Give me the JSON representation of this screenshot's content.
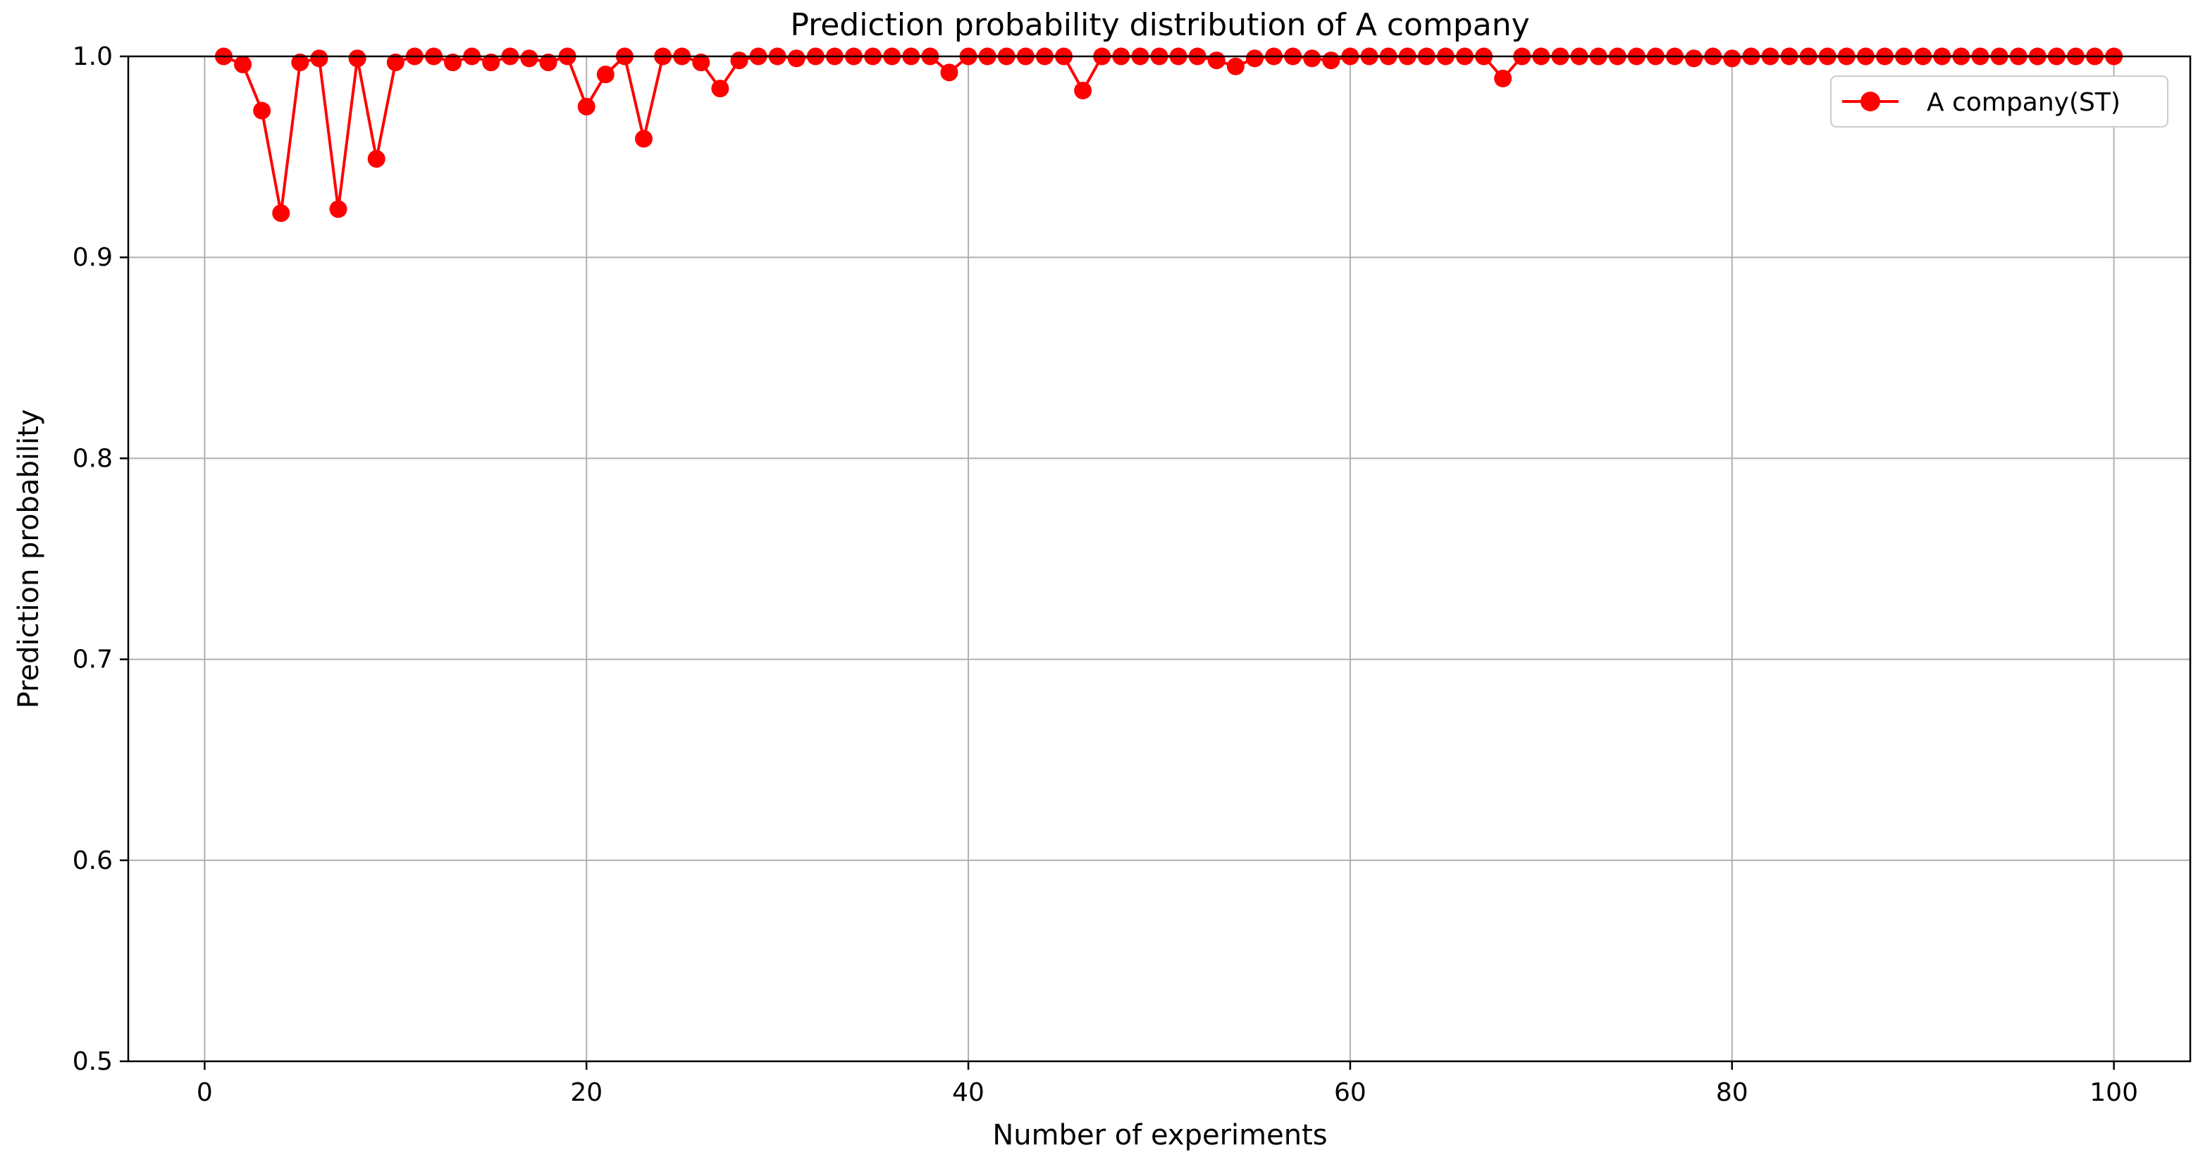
{
  "chart_data": {
    "type": "line",
    "title": "Prediction probability distribution of A company",
    "xlabel": "Number of experiments",
    "ylabel": "Prediction probability",
    "xlim": [
      -4,
      104
    ],
    "ylim": [
      0.5,
      1.0
    ],
    "xticks": [
      0,
      20,
      40,
      60,
      80,
      100
    ],
    "xtick_labels": [
      "0",
      "20",
      "40",
      "60",
      "80",
      "100"
    ],
    "yticks": [
      0.5,
      0.6,
      0.7,
      0.8,
      0.9,
      1.0
    ],
    "ytick_labels": [
      "0.5",
      "0.6",
      "0.7",
      "0.8",
      "0.9",
      "1.0"
    ],
    "grid": true,
    "legend_position": "top-right",
    "x": [
      1,
      2,
      3,
      4,
      5,
      6,
      7,
      8,
      9,
      10,
      11,
      12,
      13,
      14,
      15,
      16,
      17,
      18,
      19,
      20,
      21,
      22,
      23,
      24,
      25,
      26,
      27,
      28,
      29,
      30,
      31,
      32,
      33,
      34,
      35,
      36,
      37,
      38,
      39,
      40,
      41,
      42,
      43,
      44,
      45,
      46,
      47,
      48,
      49,
      50,
      51,
      52,
      53,
      54,
      55,
      56,
      57,
      58,
      59,
      60,
      61,
      62,
      63,
      64,
      65,
      66,
      67,
      68,
      69,
      70,
      71,
      72,
      73,
      74,
      75,
      76,
      77,
      78,
      79,
      80,
      81,
      82,
      83,
      84,
      85,
      86,
      87,
      88,
      89,
      90,
      91,
      92,
      93,
      94,
      95,
      96,
      97,
      98,
      99,
      100
    ],
    "series": [
      {
        "name": "A company(ST)",
        "color": "#ff0000",
        "marker": "circle",
        "values": [
          1.0,
          0.996,
          0.973,
          0.922,
          0.997,
          0.999,
          0.924,
          0.999,
          0.949,
          0.997,
          1.0,
          1.0,
          0.997,
          1.0,
          0.997,
          1.0,
          0.999,
          0.997,
          1.0,
          0.975,
          0.991,
          1.0,
          0.959,
          1.0,
          1.0,
          0.997,
          0.984,
          0.998,
          1.0,
          1.0,
          0.999,
          1.0,
          1.0,
          1.0,
          1.0,
          1.0,
          1.0,
          1.0,
          0.992,
          1.0,
          1.0,
          1.0,
          1.0,
          1.0,
          1.0,
          0.983,
          1.0,
          1.0,
          1.0,
          1.0,
          1.0,
          1.0,
          0.998,
          0.995,
          0.999,
          1.0,
          1.0,
          0.999,
          0.998,
          1.0,
          1.0,
          1.0,
          1.0,
          1.0,
          1.0,
          1.0,
          1.0,
          0.989,
          1.0,
          1.0,
          1.0,
          1.0,
          1.0,
          1.0,
          1.0,
          1.0,
          1.0,
          0.999,
          1.0,
          0.999,
          1.0,
          1.0,
          1.0,
          1.0,
          1.0,
          1.0,
          1.0,
          1.0,
          1.0,
          1.0,
          1.0,
          1.0,
          1.0,
          1.0,
          1.0,
          1.0,
          1.0,
          1.0,
          1.0,
          1.0
        ]
      }
    ]
  }
}
